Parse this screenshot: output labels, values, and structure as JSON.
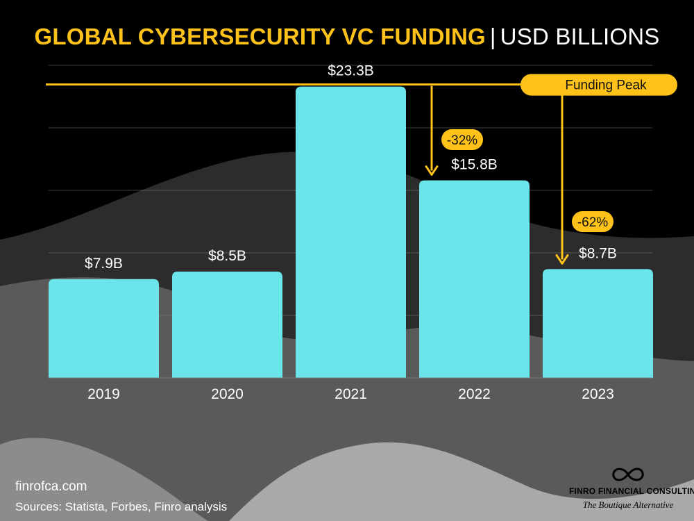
{
  "title": {
    "main": "GLOBAL CYBERSECURITY VC FUNDING",
    "separator": "|",
    "unit": "USD BILLIONS"
  },
  "chart_data": {
    "type": "bar",
    "categories": [
      "2019",
      "2020",
      "2021",
      "2022",
      "2023"
    ],
    "values": [
      7.9,
      8.5,
      23.3,
      15.8,
      8.7
    ],
    "data_labels": [
      "$7.9B",
      "$8.5B",
      "$23.3B",
      "$15.8B",
      "$8.7B"
    ],
    "ylim": [
      0,
      25
    ],
    "grid": true,
    "reference_line": {
      "label": "Funding Peak",
      "value": 23.3
    },
    "annotations": [
      {
        "text": "-32%",
        "from": "2021",
        "to": "2022"
      },
      {
        "text": "-62%",
        "from": "2021",
        "to": "2023"
      }
    ]
  },
  "colors": {
    "bar": "#6BE5EA",
    "accent": "#FFC21A",
    "background": "#000000",
    "text": "#ffffff"
  },
  "footer": {
    "site": "finrofca.com",
    "sources": "Sources: Statista, Forbes, Finro analysis"
  },
  "brand": {
    "name": "FINRO FINANCIAL CONSULTING",
    "tagline": "The Boutique Alternative",
    "logo_icon": "infinity-icon"
  }
}
